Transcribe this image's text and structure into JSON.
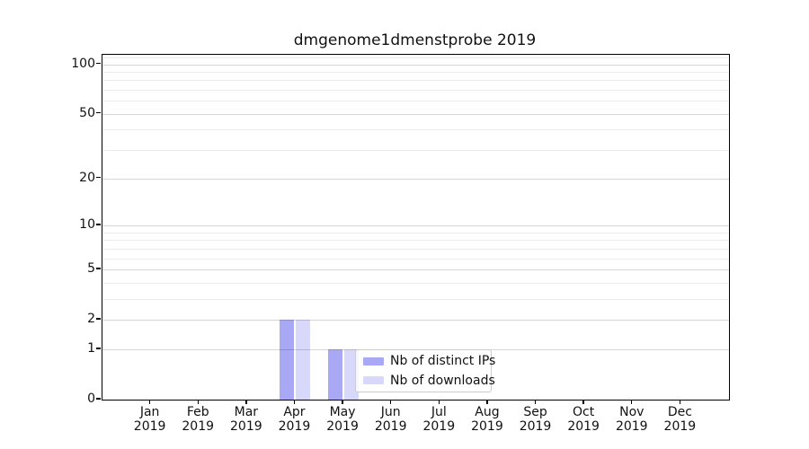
{
  "figure": {
    "title": "dmgenome1dmenstprobe 2019",
    "background_color": "#ffffff"
  },
  "chart_data": {
    "type": "bar",
    "title": "dmgenome1dmenstprobe 2019",
    "categories": [
      "Jan 2019",
      "Feb 2019",
      "Mar 2019",
      "Apr 2019",
      "May 2019",
      "Jun 2019",
      "Jul 2019",
      "Aug 2019",
      "Sep 2019",
      "Oct 2019",
      "Nov 2019",
      "Dec 2019"
    ],
    "x_month_labels": [
      "Jan",
      "Feb",
      "Mar",
      "Apr",
      "May",
      "Jun",
      "Jul",
      "Aug",
      "Sep",
      "Oct",
      "Nov",
      "Dec"
    ],
    "x_year_label": "2019",
    "series": [
      {
        "name": "Nb of distinct IPs",
        "color": "#a8a8f5",
        "values": [
          0,
          0,
          0,
          2,
          1,
          0,
          0,
          0,
          0,
          0,
          0,
          0
        ]
      },
      {
        "name": "Nb of downloads",
        "color": "#d8d8fa",
        "values": [
          0,
          0,
          0,
          2,
          1,
          0,
          0,
          0,
          0,
          0,
          0,
          0
        ]
      }
    ],
    "xlabel": "",
    "ylabel": "",
    "yscale": "log1p",
    "ylim": [
      0,
      114
    ],
    "y_ticks_major": [
      0,
      1,
      2,
      5,
      10,
      20,
      50,
      100
    ],
    "y_ticks_minor": [
      3,
      4,
      6,
      7,
      8,
      9,
      30,
      40,
      60,
      70,
      80,
      90,
      110
    ],
    "grid": "horizontal",
    "legend_position": "lower center-right inside plot"
  },
  "legend": {
    "items": [
      {
        "label": "Nb of distinct IPs",
        "color": "#a8a8f5"
      },
      {
        "label": "Nb of downloads",
        "color": "#d8d8fa"
      }
    ]
  },
  "colors": {
    "series_distinct_ips": "#a8a8f5",
    "series_downloads": "#d8d8fa",
    "grid_major": "#d6d6d6",
    "grid_minor": "#ececec",
    "spine": "#000000",
    "text": "#111111",
    "legend_border": "#cccccc"
  }
}
